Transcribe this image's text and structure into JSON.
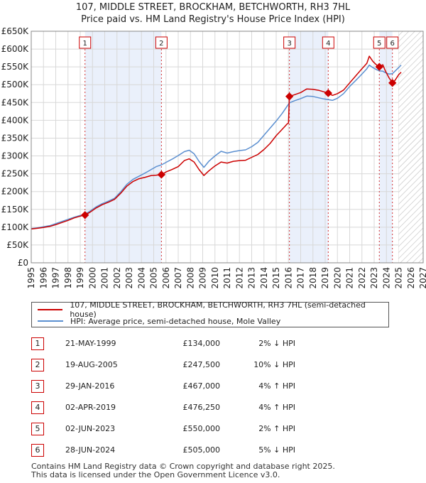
{
  "title_line1": "107, MIDDLE STREET, BROCKHAM, BETCHWORTH, RH3 7HL",
  "title_line2": "Price paid vs. HM Land Registry's House Price Index (HPI)",
  "colors": {
    "property": "#cc0000",
    "hpi": "#5b8fd0",
    "shade": "#eaf0fb",
    "grid": "#d8d8d8",
    "marker_line": "#cc0000"
  },
  "legend": {
    "property_label": "107, MIDDLE STREET, BROCKHAM, BETCHWORTH, RH3 7HL (semi-detached house)",
    "hpi_label": "HPI: Average price, semi-detached house, Mole Valley"
  },
  "transactions": [
    {
      "num": "1",
      "date": "21-MAY-1999",
      "price": "£134,000",
      "hpi": "2% ↓ HPI"
    },
    {
      "num": "2",
      "date": "19-AUG-2005",
      "price": "£247,500",
      "hpi": "10% ↓ HPI"
    },
    {
      "num": "3",
      "date": "29-JAN-2016",
      "price": "£467,000",
      "hpi": "4% ↑ HPI"
    },
    {
      "num": "4",
      "date": "02-APR-2019",
      "price": "£476,250",
      "hpi": "4% ↑ HPI"
    },
    {
      "num": "5",
      "date": "02-JUN-2023",
      "price": "£550,000",
      "hpi": "2% ↑ HPI"
    },
    {
      "num": "6",
      "date": "28-JUN-2024",
      "price": "£505,000",
      "hpi": "5% ↓ HPI"
    }
  ],
  "footer_line1": "Contains HM Land Registry data © Crown copyright and database right 2025.",
  "footer_line2": "This data is licensed under the Open Government Licence v3.0.",
  "chart_data": {
    "type": "line",
    "title": "107, MIDDLE STREET, BROCKHAM, BETCHWORTH, RH3 7HL",
    "subtitle": "Price paid vs. HM Land Registry's House Price Index (HPI)",
    "xlim": [
      1995,
      2027
    ],
    "ylim": [
      0,
      650000
    ],
    "x_ticks": [
      1995,
      1996,
      1997,
      1998,
      1999,
      2000,
      2001,
      2002,
      2003,
      2004,
      2005,
      2006,
      2007,
      2008,
      2009,
      2010,
      2011,
      2012,
      2013,
      2014,
      2015,
      2016,
      2017,
      2018,
      2019,
      2020,
      2021,
      2022,
      2023,
      2024,
      2025,
      2026,
      2027
    ],
    "y_ticks": [
      0,
      50000,
      100000,
      150000,
      200000,
      250000,
      300000,
      350000,
      400000,
      450000,
      500000,
      550000,
      600000,
      650000
    ],
    "y_tick_labels": [
      "£0",
      "£50K",
      "£100K",
      "£150K",
      "£200K",
      "£250K",
      "£300K",
      "£350K",
      "£400K",
      "£450K",
      "£500K",
      "£550K",
      "£600K",
      "£650K"
    ],
    "grid": true,
    "shaded_periods": [
      [
        1999.39,
        2005.63
      ],
      [
        2016.08,
        2019.25
      ],
      [
        2023.42,
        2024.49
      ]
    ],
    "forecast_hatch_from": 2025.0,
    "legend_position": "below chart",
    "series": [
      {
        "name": "107, MIDDLE STREET, BROCKHAM, BETCHWORTH, RH3 7HL (semi-detached house)",
        "color": "#cc0000",
        "points": [
          [
            1995.0,
            95000
          ],
          [
            1995.5,
            97000
          ],
          [
            1996.0,
            99000
          ],
          [
            1996.5,
            102000
          ],
          [
            1997.0,
            107000
          ],
          [
            1997.5,
            113000
          ],
          [
            1998.0,
            119000
          ],
          [
            1998.5,
            126000
          ],
          [
            1999.0,
            131000
          ],
          [
            1999.39,
            134000
          ],
          [
            1999.8,
            142000
          ],
          [
            2000.3,
            154000
          ],
          [
            2000.8,
            163000
          ],
          [
            2001.3,
            170000
          ],
          [
            2001.8,
            178000
          ],
          [
            2002.3,
            195000
          ],
          [
            2002.8,
            215000
          ],
          [
            2003.3,
            228000
          ],
          [
            2003.8,
            236000
          ],
          [
            2004.3,
            240000
          ],
          [
            2004.8,
            245000
          ],
          [
            2005.2,
            246000
          ],
          [
            2005.63,
            247500
          ],
          [
            2006.0,
            255000
          ],
          [
            2006.5,
            262000
          ],
          [
            2007.0,
            270000
          ],
          [
            2007.5,
            287000
          ],
          [
            2007.9,
            292000
          ],
          [
            2008.3,
            283000
          ],
          [
            2008.7,
            262000
          ],
          [
            2009.1,
            245000
          ],
          [
            2009.5,
            258000
          ],
          [
            2010.0,
            272000
          ],
          [
            2010.5,
            283000
          ],
          [
            2011.0,
            280000
          ],
          [
            2011.5,
            285000
          ],
          [
            2012.0,
            287000
          ],
          [
            2012.5,
            288000
          ],
          [
            2013.0,
            296000
          ],
          [
            2013.5,
            304000
          ],
          [
            2014.0,
            318000
          ],
          [
            2014.5,
            335000
          ],
          [
            2015.0,
            357000
          ],
          [
            2015.5,
            375000
          ],
          [
            2015.9,
            390000
          ],
          [
            2016.0,
            392000
          ],
          [
            2016.08,
            467000
          ],
          [
            2016.5,
            472000
          ],
          [
            2017.0,
            478000
          ],
          [
            2017.5,
            488000
          ],
          [
            2018.0,
            487000
          ],
          [
            2018.5,
            484000
          ],
          [
            2018.9,
            480000
          ],
          [
            2019.25,
            476250
          ],
          [
            2019.6,
            470000
          ],
          [
            2020.0,
            475000
          ],
          [
            2020.5,
            485000
          ],
          [
            2021.0,
            505000
          ],
          [
            2021.5,
            525000
          ],
          [
            2022.0,
            545000
          ],
          [
            2022.4,
            560000
          ],
          [
            2022.6,
            580000
          ],
          [
            2022.9,
            565000
          ],
          [
            2023.2,
            555000
          ],
          [
            2023.42,
            550000
          ],
          [
            2023.7,
            556000
          ],
          [
            2023.9,
            540000
          ],
          [
            2024.2,
            520000
          ],
          [
            2024.49,
            505000
          ],
          [
            2024.7,
            512000
          ],
          [
            2025.0,
            528000
          ],
          [
            2025.2,
            535000
          ]
        ]
      },
      {
        "name": "HPI: Average price, semi-detached house, Mole Valley",
        "color": "#5b8fd0",
        "points": [
          [
            1995.0,
            96000
          ],
          [
            1995.5,
            98000
          ],
          [
            1996.0,
            101000
          ],
          [
            1996.5,
            104000
          ],
          [
            1997.0,
            110000
          ],
          [
            1997.5,
            116000
          ],
          [
            1998.0,
            122000
          ],
          [
            1998.5,
            128000
          ],
          [
            1999.0,
            133000
          ],
          [
            1999.39,
            136000
          ],
          [
            1999.8,
            145000
          ],
          [
            2000.3,
            157000
          ],
          [
            2000.8,
            166000
          ],
          [
            2001.3,
            173000
          ],
          [
            2001.8,
            181000
          ],
          [
            2002.3,
            199000
          ],
          [
            2002.8,
            220000
          ],
          [
            2003.3,
            234000
          ],
          [
            2003.8,
            243000
          ],
          [
            2004.3,
            252000
          ],
          [
            2004.8,
            262000
          ],
          [
            2005.2,
            270000
          ],
          [
            2005.63,
            275000
          ],
          [
            2006.0,
            282000
          ],
          [
            2006.5,
            291000
          ],
          [
            2007.0,
            301000
          ],
          [
            2007.5,
            312000
          ],
          [
            2007.9,
            316000
          ],
          [
            2008.3,
            306000
          ],
          [
            2008.7,
            285000
          ],
          [
            2009.1,
            268000
          ],
          [
            2009.5,
            285000
          ],
          [
            2010.0,
            300000
          ],
          [
            2010.5,
            313000
          ],
          [
            2011.0,
            308000
          ],
          [
            2011.5,
            312000
          ],
          [
            2012.0,
            315000
          ],
          [
            2012.5,
            317000
          ],
          [
            2013.0,
            326000
          ],
          [
            2013.5,
            338000
          ],
          [
            2014.0,
            358000
          ],
          [
            2014.5,
            378000
          ],
          [
            2015.0,
            398000
          ],
          [
            2015.5,
            420000
          ],
          [
            2016.08,
            449000
          ],
          [
            2016.5,
            455000
          ],
          [
            2017.0,
            461000
          ],
          [
            2017.5,
            468000
          ],
          [
            2018.0,
            467000
          ],
          [
            2018.5,
            463000
          ],
          [
            2018.9,
            460000
          ],
          [
            2019.25,
            458000
          ],
          [
            2019.6,
            456000
          ],
          [
            2020.0,
            462000
          ],
          [
            2020.5,
            475000
          ],
          [
            2021.0,
            495000
          ],
          [
            2021.5,
            512000
          ],
          [
            2022.0,
            530000
          ],
          [
            2022.4,
            545000
          ],
          [
            2022.6,
            555000
          ],
          [
            2022.9,
            548000
          ],
          [
            2023.2,
            542000
          ],
          [
            2023.42,
            539000
          ],
          [
            2023.7,
            538000
          ],
          [
            2023.9,
            534000
          ],
          [
            2024.2,
            530000
          ],
          [
            2024.49,
            531000
          ],
          [
            2024.7,
            538000
          ],
          [
            2025.0,
            548000
          ],
          [
            2025.2,
            555000
          ]
        ]
      }
    ],
    "sales": [
      {
        "label": "1",
        "x": 1999.39,
        "y": 134000
      },
      {
        "label": "2",
        "x": 2005.63,
        "y": 247500
      },
      {
        "label": "3",
        "x": 2016.08,
        "y": 467000
      },
      {
        "label": "4",
        "x": 2019.25,
        "y": 476250
      },
      {
        "label": "5",
        "x": 2023.42,
        "y": 550000
      },
      {
        "label": "6",
        "x": 2024.49,
        "y": 505000
      }
    ]
  }
}
